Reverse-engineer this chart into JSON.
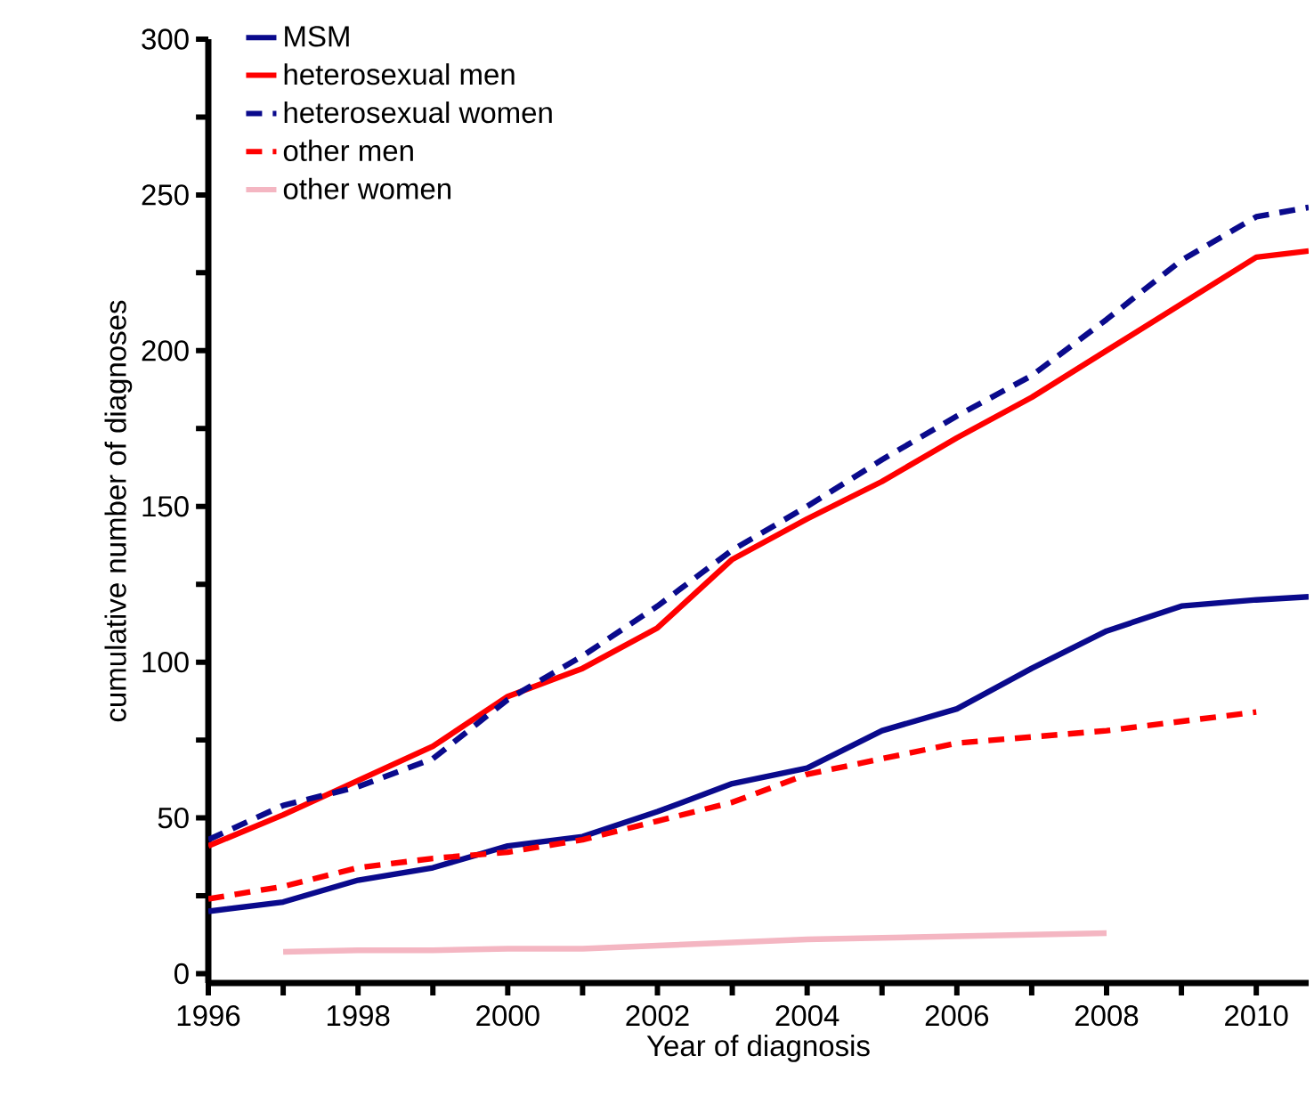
{
  "chart_data": {
    "type": "line",
    "xlabel": "Year of diagnosis",
    "ylabel": "cumulative number of diagnoses",
    "xlim": [
      1996,
      2010.7
    ],
    "ylim": [
      -3,
      300
    ],
    "xticks": [
      1996,
      {
        "value": 1997,
        "label": null
      },
      1998,
      {
        "value": 1999,
        "label": null
      },
      2000,
      {
        "value": 2001,
        "label": null
      },
      2002,
      {
        "value": 2003,
        "label": null
      },
      2004,
      {
        "value": 2005,
        "label": null
      },
      2006,
      {
        "value": 2007,
        "label": null
      },
      2008,
      {
        "value": 2009,
        "label": null
      },
      2010
    ],
    "yticks": [
      0,
      {
        "value": 25,
        "label": null
      },
      50,
      {
        "value": 75,
        "label": null
      },
      100,
      {
        "value": 125,
        "label": null
      },
      150,
      {
        "value": 175,
        "label": null
      },
      200,
      {
        "value": 225,
        "label": null
      },
      250,
      {
        "value": 275,
        "label": null
      },
      300
    ],
    "legend": "top left",
    "grid": false,
    "series": [
      {
        "name": "MSM",
        "color": "#0a0a8c",
        "line_style": "solid",
        "x": [
          1996,
          1997,
          1998,
          1999,
          2000,
          2001,
          2002,
          2003,
          2004,
          2005,
          2006,
          2007,
          2008,
          2009,
          2010,
          2010.7
        ],
        "values": [
          20,
          23,
          30,
          34,
          41,
          44,
          52,
          61,
          66,
          78,
          85,
          98,
          110,
          118,
          120,
          121
        ]
      },
      {
        "name": "heterosexual men",
        "color": "#ff0000",
        "line_style": "solid",
        "x": [
          1996,
          1997,
          1998,
          1999,
          2000,
          2001,
          2002,
          2003,
          2004,
          2005,
          2006,
          2007,
          2008,
          2009,
          2010,
          2010.7
        ],
        "values": [
          41,
          51,
          62,
          73,
          89,
          98,
          111,
          133,
          146,
          158,
          172,
          185,
          200,
          215,
          230,
          232
        ]
      },
      {
        "name": "heterosexual women",
        "color": "#0a0a8c",
        "line_style": "dashed",
        "x": [
          1996,
          1997,
          1998,
          1999,
          2000,
          2001,
          2002,
          2003,
          2004,
          2005,
          2006,
          2007,
          2008,
          2009,
          2010,
          2010.7
        ],
        "values": [
          43,
          54,
          60,
          69,
          88,
          102,
          118,
          136,
          150,
          165,
          179,
          192,
          210,
          229,
          243,
          246
        ]
      },
      {
        "name": "other men",
        "color": "#ff0000",
        "line_style": "dashed",
        "x": [
          1996,
          1997,
          1998,
          1999,
          2000,
          2001,
          2002,
          2003,
          2004,
          2005,
          2006,
          2007,
          2008,
          2009,
          2010
        ],
        "values": [
          24,
          28,
          34,
          37,
          39,
          43,
          49,
          55,
          64,
          69,
          74,
          76,
          78,
          81,
          84
        ]
      },
      {
        "name": "other women",
        "color": "#f4b6c2",
        "line_style": "solid",
        "x": [
          1997,
          1998,
          1999,
          2000,
          2001,
          2002,
          2003,
          2004,
          2005,
          2006,
          2007,
          2008
        ],
        "values": [
          7,
          7.5,
          7.5,
          8,
          8,
          9,
          10,
          11,
          11.5,
          12,
          12.5,
          13
        ]
      }
    ]
  }
}
